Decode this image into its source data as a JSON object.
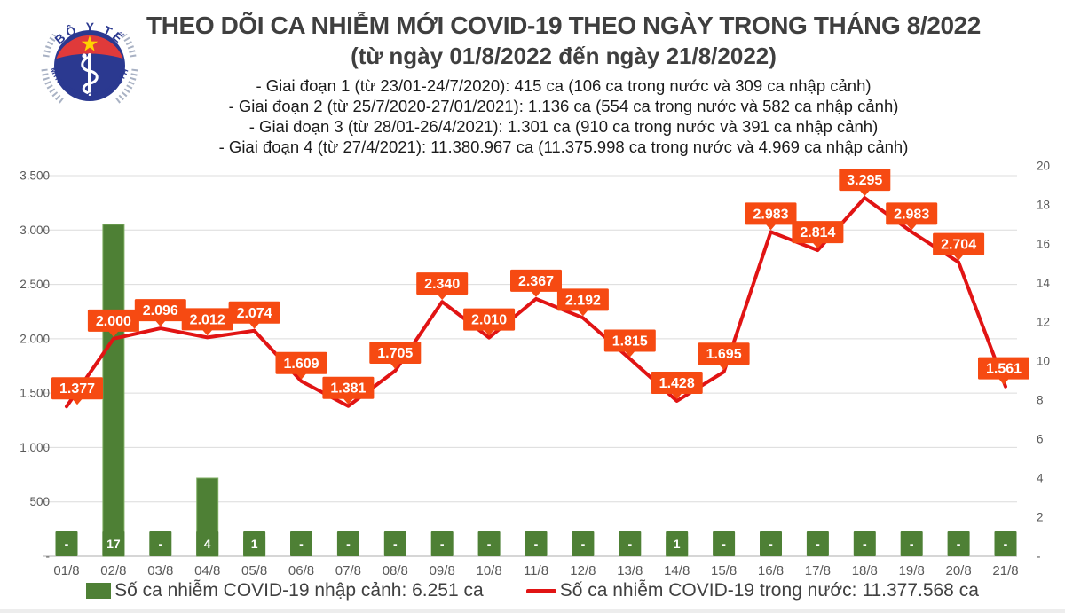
{
  "header": {
    "logo": {
      "top_text": "BỘ Y TẾ",
      "bottom_text": "MINISTRY OF HEALTH"
    },
    "title": "THEO DÕI CA NHIỄM MỚI COVID-19 THEO NGÀY TRONG THÁNG 8/2022",
    "subtitle": "(từ ngày 01/8/2022 đến ngày 21/8/2022)",
    "phases": [
      "- Giai đoạn 1 (từ 23/01-24/7/2020): 415 ca (106 ca trong nước và 309 ca nhập cảnh)",
      "- Giai đoạn 2 (từ 25/7/2020-27/01/2021): 1.136 ca (554 ca trong nước và 582 ca nhập cảnh)",
      "- Giai đoạn 3 (từ 28/01-26/4/2021): 1.301 ca (910 ca trong nước và 391 ca nhập cảnh)",
      "- Giai đoạn 4 (từ 27/4/2021): 11.380.967 ca (11.375.998 ca trong nước và 4.969 ca nhập cảnh)"
    ]
  },
  "chart_data": {
    "type": "combo",
    "categories": [
      "01/8",
      "02/8",
      "03/8",
      "04/8",
      "05/8",
      "06/8",
      "07/8",
      "08/8",
      "09/8",
      "10/8",
      "11/8",
      "12/8",
      "13/8",
      "14/8",
      "15/8",
      "16/8",
      "17/8",
      "18/8",
      "19/8",
      "20/8",
      "21/8"
    ],
    "series": [
      {
        "name": "Số ca nhiễm COVID-19 nhập cảnh",
        "type": "bar",
        "axis": "right",
        "values": [
          0,
          17,
          0,
          4,
          1,
          0,
          0,
          0,
          0,
          0,
          0,
          0,
          0,
          1,
          0,
          0,
          0,
          0,
          0,
          0,
          0
        ],
        "labels": [
          "-",
          "17",
          "-",
          "4",
          "1",
          "-",
          "-",
          "-",
          "-",
          "-",
          "-",
          "-",
          "-",
          "1",
          "-",
          "-",
          "-",
          "-",
          "-",
          "-",
          "-"
        ],
        "color": "#4e8035"
      },
      {
        "name": "Số ca nhiễm COVID-19 trong nước",
        "type": "line",
        "axis": "left",
        "values": [
          1377,
          2000,
          2096,
          2012,
          2074,
          1609,
          1381,
          1705,
          2340,
          2010,
          2367,
          2192,
          1815,
          1428,
          1695,
          2983,
          2814,
          3295,
          2983,
          2704,
          1561
        ],
        "labels": [
          "1.377",
          "2.000",
          "2.096",
          "2.012",
          "2.074",
          "1.609",
          "1.381",
          "1.705",
          "2.340",
          "2.010",
          "2.367",
          "2.192",
          "1.815",
          "1.428",
          "1.695",
          "2.983",
          "2.814",
          "3.295",
          "2.983",
          "2.704",
          "1.561"
        ],
        "color": "#e11414",
        "label_box_color": "#f64a12"
      }
    ],
    "left_axis": {
      "min": 0,
      "max": 3500,
      "step": 500,
      "ticks": [
        "-",
        "500",
        "1.000",
        "1.500",
        "2.000",
        "2.500",
        "3.000",
        "3.500"
      ]
    },
    "right_axis": {
      "min": 0,
      "max": 20,
      "step": 2,
      "ticks": [
        "-",
        "2",
        "4",
        "6",
        "8",
        "10",
        "12",
        "14",
        "16",
        "18",
        "20"
      ]
    },
    "grid": true,
    "legend_position": "bottom"
  },
  "legend": {
    "bar_label": "Số ca nhiễm COVID-19 nhập cảnh: 6.251 ca",
    "line_label": "Số ca nhiễm COVID-19 trong nước: 11.377.568 ca"
  },
  "colors": {
    "bar_green": "#4e8035",
    "line_red": "#e11414",
    "callout_orange": "#f64a12",
    "grid_gray": "#dcdcdc",
    "baseline_gray": "#c8c8c8",
    "axis_text": "#595959",
    "title_gray": "#3f3f3f",
    "logo_blue": "#2b3990",
    "logo_red": "#e03a3a",
    "logo_star_yellow": "#ffd200"
  }
}
